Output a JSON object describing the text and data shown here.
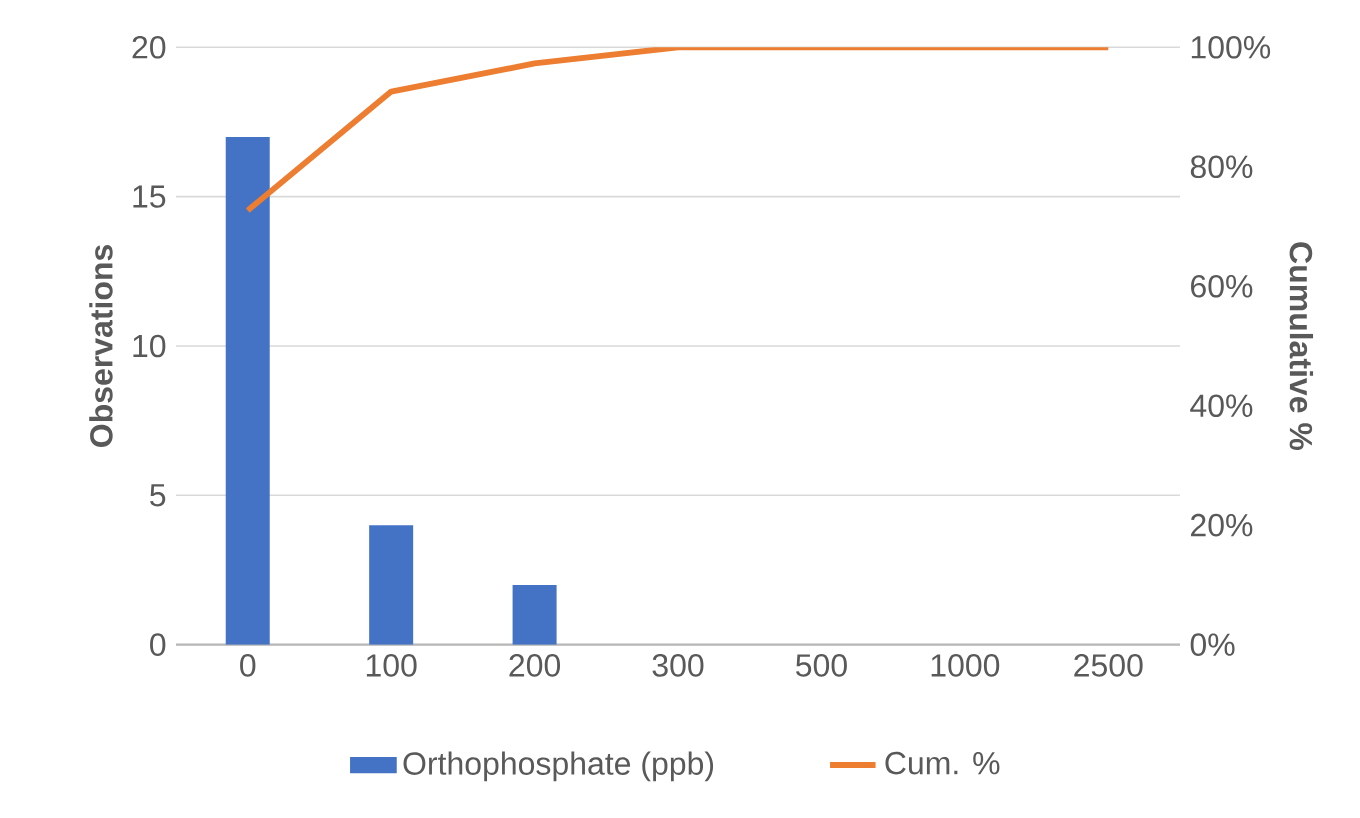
{
  "chart_data": {
    "type": "bar",
    "categories": [
      "0",
      "100",
      "200",
      "300",
      "500",
      "1000",
      "2500"
    ],
    "series": [
      {
        "name": "Orthophosphate (ppb)",
        "color": "#4472c4",
        "values": [
          17,
          4,
          2,
          0,
          0,
          0,
          0
        ]
      },
      {
        "name": "Cum. %",
        "type": "line",
        "axis": "y2",
        "color": "#ed7d31",
        "values": [
          72.7,
          92.6,
          97.3,
          100,
          100,
          100,
          100
        ]
      }
    ],
    "ylabel": "Observations",
    "y2label": "Cumulative %",
    "ylim": [
      0,
      20
    ],
    "yticks": [
      0,
      5,
      10,
      15,
      20
    ],
    "y2lim": [
      0,
      100
    ],
    "y2ticks": [
      {
        "value": 0,
        "label": "0%"
      },
      {
        "value": 20,
        "label": "20%"
      },
      {
        "value": 40,
        "label": "40%"
      },
      {
        "value": 60,
        "label": "60%"
      },
      {
        "value": 80,
        "label": "80%"
      },
      {
        "value": 100,
        "label": "100%"
      }
    ],
    "grid": "y",
    "legend": "bottom"
  }
}
